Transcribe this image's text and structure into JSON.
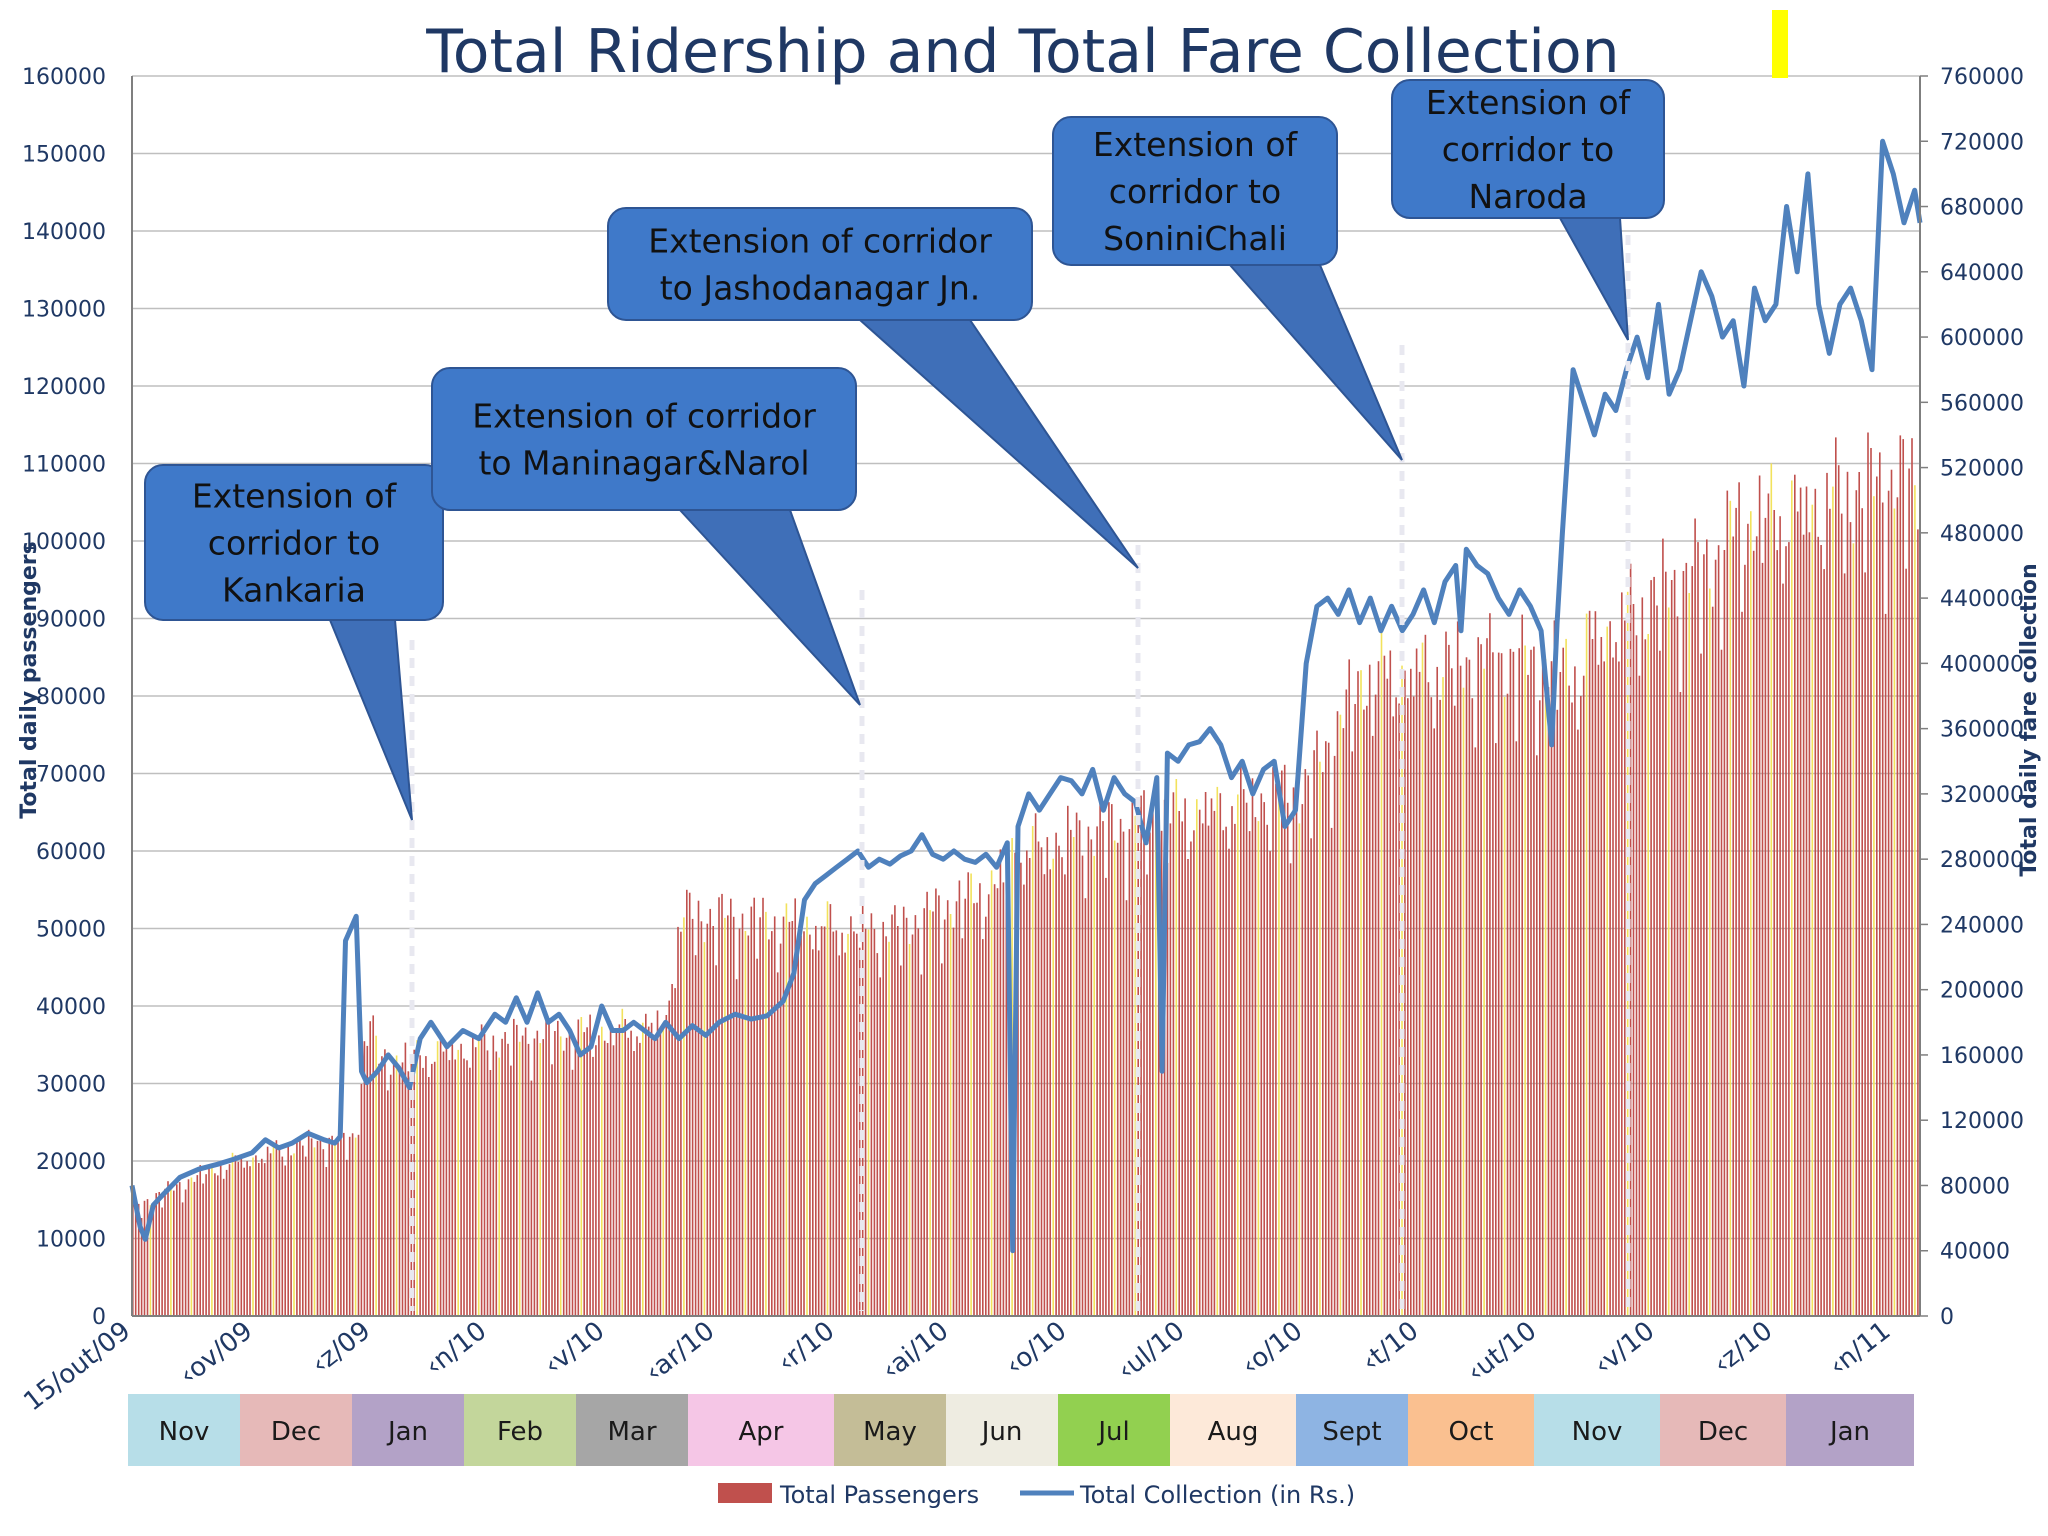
{
  "chart_data": {
    "type": "bar",
    "title": "Total Ridership and Total Fare Collection",
    "ylabel": "Total daily passengers",
    "y2label": "Total daily fare collection",
    "ylim": [
      0,
      160000
    ],
    "y2lim": [
      0,
      760000
    ],
    "yticks": [
      "0",
      "10000",
      "20000",
      "30000",
      "40000",
      "50000",
      "60000",
      "70000",
      "80000",
      "90000",
      "100000",
      "110000",
      "120000",
      "130000",
      "140000",
      "150000",
      "160000"
    ],
    "y2ticks": [
      "0",
      "40000",
      "80000",
      "120000",
      "160000",
      "200000",
      "240000",
      "280000",
      "320000",
      "360000",
      "400000",
      "440000",
      "480000",
      "520000",
      "560000",
      "600000",
      "640000",
      "680000",
      "720000",
      "760000"
    ],
    "x_tick_labels": [
      "15/out/09",
      "‹ov/09",
      "‹z/09",
      "‹n/10",
      "‹v/10",
      "‹ar/10",
      "‹r/10",
      "‹ai/10",
      "‹o/10",
      "‹ul/10",
      "‹o/10",
      "‹t/10",
      "‹ut/10",
      "‹v/10",
      "‹z/10",
      "‹n/11"
    ],
    "grid": true,
    "legend_position": "bottom",
    "legend": [
      "Total Passengers",
      "Total Collection (in Rs.)"
    ],
    "series": [
      {
        "name": "Total Passengers",
        "type": "bar",
        "color": "#c0504d",
        "keypoints": [
          [
            0,
            14000
          ],
          [
            5,
            15000
          ],
          [
            30,
            19500
          ],
          [
            60,
            22500
          ],
          [
            75,
            23000
          ],
          [
            77,
            25000
          ],
          [
            80,
            40000
          ],
          [
            84,
            33000
          ],
          [
            100,
            34000
          ],
          [
            130,
            36000
          ],
          [
            160,
            37000
          ],
          [
            182,
            38000
          ],
          [
            184,
            46000
          ],
          [
            188,
            52000
          ],
          [
            220,
            51000
          ],
          [
            260,
            50000
          ],
          [
            295,
            56000
          ],
          [
            298,
            60000
          ],
          [
            330,
            63000
          ],
          [
            375,
            66500
          ],
          [
            400,
            68000
          ],
          [
            420,
            83000
          ],
          [
            460,
            85000
          ],
          [
            495,
            84000
          ],
          [
            497,
            88000
          ],
          [
            540,
            98000
          ],
          [
            548,
            103000
          ],
          [
            600,
            108000
          ],
          [
            610,
            108000
          ]
        ]
      },
      {
        "name": "Total Collection (in Rs.)",
        "type": "line",
        "color": "#4f81bd",
        "points": [
          [
            0,
            80000
          ],
          [
            3,
            55000
          ],
          [
            5,
            47000
          ],
          [
            8,
            68000
          ],
          [
            12,
            75000
          ],
          [
            18,
            85000
          ],
          [
            25,
            90000
          ],
          [
            32,
            93000
          ],
          [
            38,
            96000
          ],
          [
            45,
            100000
          ],
          [
            50,
            108000
          ],
          [
            55,
            103000
          ],
          [
            60,
            106000
          ],
          [
            66,
            112000
          ],
          [
            72,
            108000
          ],
          [
            76,
            106000
          ],
          [
            78,
            110000
          ],
          [
            80,
            230000
          ],
          [
            84,
            245000
          ],
          [
            86,
            150000
          ],
          [
            88,
            143000
          ],
          [
            92,
            150000
          ],
          [
            96,
            160000
          ],
          [
            100,
            152000
          ],
          [
            104,
            140000
          ],
          [
            108,
            170000
          ],
          [
            112,
            180000
          ],
          [
            118,
            165000
          ],
          [
            124,
            175000
          ],
          [
            130,
            170000
          ],
          [
            136,
            185000
          ],
          [
            140,
            180000
          ],
          [
            144,
            195000
          ],
          [
            148,
            180000
          ],
          [
            152,
            198000
          ],
          [
            156,
            180000
          ],
          [
            160,
            185000
          ],
          [
            164,
            175000
          ],
          [
            168,
            160000
          ],
          [
            172,
            165000
          ],
          [
            176,
            190000
          ],
          [
            180,
            175000
          ],
          [
            184,
            175000
          ],
          [
            188,
            180000
          ],
          [
            192,
            175000
          ],
          [
            196,
            170000
          ],
          [
            200,
            180000
          ],
          [
            205,
            170000
          ],
          [
            210,
            178000
          ],
          [
            215,
            172000
          ],
          [
            220,
            180000
          ],
          [
            226,
            185000
          ],
          [
            232,
            182000
          ],
          [
            238,
            184000
          ],
          [
            244,
            193000
          ],
          [
            248,
            210000
          ],
          [
            252,
            255000
          ],
          [
            256,
            265000
          ],
          [
            260,
            270000
          ],
          [
            264,
            275000
          ],
          [
            268,
            280000
          ],
          [
            272,
            285000
          ],
          [
            276,
            275000
          ],
          [
            280,
            280000
          ],
          [
            284,
            277000
          ],
          [
            288,
            282000
          ],
          [
            292,
            285000
          ],
          [
            296,
            295000
          ],
          [
            300,
            283000
          ],
          [
            304,
            280000
          ],
          [
            308,
            285000
          ],
          [
            312,
            280000
          ],
          [
            316,
            278000
          ],
          [
            320,
            283000
          ],
          [
            324,
            275000
          ],
          [
            328,
            290000
          ],
          [
            330,
            40000
          ],
          [
            332,
            300000
          ],
          [
            336,
            320000
          ],
          [
            340,
            310000
          ],
          [
            344,
            320000
          ],
          [
            348,
            330000
          ],
          [
            352,
            328000
          ],
          [
            356,
            320000
          ],
          [
            360,
            335000
          ],
          [
            364,
            310000
          ],
          [
            368,
            330000
          ],
          [
            372,
            320000
          ],
          [
            376,
            315000
          ],
          [
            380,
            290000
          ],
          [
            384,
            330000
          ],
          [
            386,
            150000
          ],
          [
            388,
            345000
          ],
          [
            392,
            340000
          ],
          [
            396,
            350000
          ],
          [
            400,
            352000
          ],
          [
            404,
            360000
          ],
          [
            408,
            350000
          ],
          [
            412,
            330000
          ],
          [
            416,
            340000
          ],
          [
            420,
            320000
          ],
          [
            424,
            335000
          ],
          [
            428,
            340000
          ],
          [
            432,
            300000
          ],
          [
            436,
            310000
          ],
          [
            440,
            400000
          ],
          [
            444,
            435000
          ],
          [
            448,
            440000
          ],
          [
            452,
            430000
          ],
          [
            456,
            445000
          ],
          [
            460,
            425000
          ],
          [
            464,
            440000
          ],
          [
            468,
            420000
          ],
          [
            472,
            435000
          ],
          [
            476,
            420000
          ],
          [
            480,
            430000
          ],
          [
            484,
            445000
          ],
          [
            488,
            425000
          ],
          [
            492,
            450000
          ],
          [
            496,
            460000
          ],
          [
            498,
            420000
          ],
          [
            500,
            470000
          ],
          [
            504,
            460000
          ],
          [
            508,
            455000
          ],
          [
            512,
            440000
          ],
          [
            516,
            430000
          ],
          [
            520,
            445000
          ],
          [
            524,
            435000
          ],
          [
            528,
            420000
          ],
          [
            532,
            350000
          ],
          [
            534,
            425000
          ],
          [
            536,
            480000
          ],
          [
            540,
            580000
          ],
          [
            544,
            560000
          ],
          [
            548,
            540000
          ],
          [
            552,
            565000
          ],
          [
            556,
            555000
          ],
          [
            560,
            580000
          ],
          [
            564,
            600000
          ],
          [
            568,
            575000
          ],
          [
            572,
            620000
          ],
          [
            576,
            565000
          ],
          [
            580,
            580000
          ],
          [
            584,
            610000
          ],
          [
            588,
            640000
          ],
          [
            592,
            625000
          ],
          [
            596,
            600000
          ],
          [
            600,
            610000
          ],
          [
            604,
            570000
          ],
          [
            608,
            630000
          ],
          [
            612,
            610000
          ],
          [
            616,
            620000
          ],
          [
            620,
            680000
          ],
          [
            624,
            640000
          ],
          [
            628,
            700000
          ],
          [
            632,
            620000
          ],
          [
            636,
            590000
          ],
          [
            640,
            620000
          ],
          [
            644,
            630000
          ],
          [
            648,
            610000
          ],
          [
            652,
            580000
          ],
          [
            656,
            720000
          ],
          [
            660,
            700000
          ],
          [
            664,
            670000
          ],
          [
            668,
            690000
          ],
          [
            670,
            670000
          ]
        ]
      }
    ],
    "annotations": [
      {
        "lines": [
          "Extension of",
          "corridor to",
          "Kankaria"
        ]
      },
      {
        "lines": [
          "Extension of corridor",
          "to Maninagar&Narol"
        ]
      },
      {
        "lines": [
          "Extension of corridor",
          "to Jashodanagar Jn."
        ]
      },
      {
        "lines": [
          "Extension of",
          "corridor to",
          "SoniniChali"
        ]
      },
      {
        "lines": [
          "Extension of",
          "corridor to",
          "Naroda"
        ]
      }
    ],
    "months": [
      {
        "label": "Nov",
        "color": "#b7dee8"
      },
      {
        "label": "Dec",
        "color": "#e6b9b8"
      },
      {
        "label": "Jan",
        "color": "#b3a2c7"
      },
      {
        "label": "Feb",
        "color": "#c3d69b"
      },
      {
        "label": "Mar",
        "color": "#a6a6a6"
      },
      {
        "label": "Apr",
        "color": "#f5c6e6"
      },
      {
        "label": "May",
        "color": "#c4bd97"
      },
      {
        "label": "Jun",
        "color": "#eeece1"
      },
      {
        "label": "Jul",
        "color": "#92d050"
      },
      {
        "label": "Aug",
        "color": "#fde9d9"
      },
      {
        "label": "Sept",
        "color": "#8eb4e3"
      },
      {
        "label": "Oct",
        "color": "#fac090"
      },
      {
        "label": "Nov",
        "color": "#b7dee8"
      },
      {
        "label": "Dec",
        "color": "#e6b9b8"
      },
      {
        "label": "Jan",
        "color": "#b3a2c7"
      }
    ]
  }
}
